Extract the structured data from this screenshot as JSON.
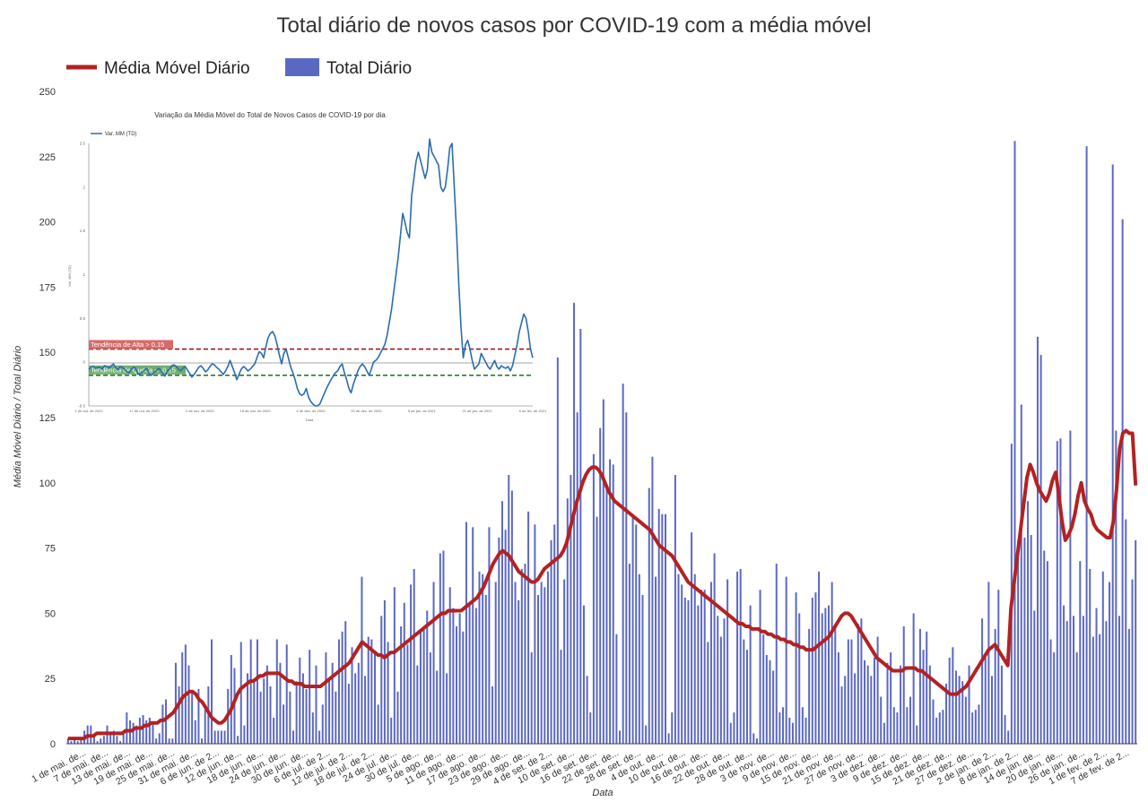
{
  "chart_data": [
    {
      "type": "bar",
      "title": "Total diário de novos casos por COVID-19 com a média móvel",
      "xlabel": "Data",
      "ylabel": "Média Móvel Diário / Total Diário",
      "ylim": [
        0,
        250
      ],
      "yticks": [
        "0",
        "25",
        "50",
        "75",
        "100",
        "125",
        "150",
        "175",
        "200",
        "225",
        "250"
      ],
      "grid": false,
      "legend_position": "top-left",
      "colors": {
        "bar": "#5b68c2",
        "line": "#b22222"
      },
      "legend": [
        {
          "name": "Média Móvel Diário",
          "kind": "line"
        },
        {
          "name": "Total Diário",
          "kind": "bar"
        }
      ],
      "category_labels": [
        "1 de mai. de...",
        "7 de mai. de...",
        "13 de mai. de...",
        "19 de mai. de...",
        "25 de mai. de...",
        "31 de mai. de...",
        "6 de jun. de 2...",
        "12 de jun. de...",
        "18 de jun. de...",
        "24 de jun. de...",
        "30 de jun. de...",
        "6 de jul. de 2...",
        "12 de jul. de 2...",
        "18 de jul. de 2...",
        "24 de jul. de...",
        "30 de jul. de...",
        "5 de ago. de...",
        "11 de ago. de...",
        "17 de ago. de...",
        "23 de ago. de...",
        "29 de ago. de...",
        "4 de set. de 2...",
        "10 de set. de...",
        "16 de set. de...",
        "22 de set. de...",
        "28 de set. de...",
        "4 de out. de...",
        "10 de out. de...",
        "16 de out. de...",
        "22 de out. de...",
        "28 de out. de...",
        "3 de nov. de...",
        "9 de nov. de...",
        "15 de nov. de...",
        "21 de nov. de...",
        "27 de nov. de...",
        "3 de dez. de...",
        "9 de dez. de...",
        "15 de dez. de...",
        "21 de dez. de...",
        "27 de dez. de...",
        "2 de jan. de 2...",
        "8 de jan. de 2...",
        "14 de jan. de...",
        "20 de jan. de...",
        "26 de jan. de...",
        "1 de fev. de 2...",
        "7 de fev. de 2..."
      ],
      "series": [
        {
          "name": "Total Diário",
          "type": "bar",
          "values": [
            2,
            1,
            2,
            1,
            2,
            5,
            7,
            7,
            3,
            1,
            2,
            3,
            7,
            4,
            5,
            3,
            1,
            4,
            12,
            9,
            8,
            7,
            10,
            11,
            9,
            10,
            8,
            2,
            4,
            15,
            17,
            2,
            2,
            31,
            22,
            35,
            38,
            30,
            20,
            9,
            21,
            2,
            13,
            22,
            40,
            5,
            5,
            5,
            5,
            21,
            34,
            29,
            3,
            39,
            7,
            27,
            40,
            25,
            40,
            20,
            25,
            30,
            22,
            10,
            40,
            31,
            15,
            38,
            20,
            5,
            24,
            33,
            27,
            21,
            36,
            12,
            30,
            5,
            15,
            35,
            25,
            31,
            20,
            40,
            43,
            47,
            23,
            37,
            27,
            31,
            64,
            26,
            41,
            40,
            35,
            15,
            49,
            55,
            39,
            10,
            60,
            20,
            45,
            54,
            38,
            61,
            67,
            30,
            44,
            45,
            51,
            35,
            62,
            28,
            73,
            74,
            27,
            60,
            52,
            45,
            50,
            43,
            85,
            54,
            83,
            52,
            66,
            65,
            57,
            83,
            22,
            62,
            79,
            93,
            82,
            103,
            97,
            62,
            55,
            67,
            69,
            89,
            35,
            84,
            57,
            62,
            60,
            66,
            78,
            84,
            148,
            36,
            63,
            94,
            103,
            169,
            127,
            159,
            53,
            26,
            12,
            111,
            87,
            121,
            132,
            99,
            109,
            107,
            42,
            5,
            138,
            127,
            69,
            88,
            84,
            65,
            57,
            7,
            98,
            110,
            64,
            90,
            88,
            88,
            4,
            12,
            103,
            65,
            61,
            56,
            55,
            81,
            65,
            53,
            59,
            59,
            39,
            62,
            73,
            49,
            41,
            48,
            63,
            8,
            12,
            66,
            67,
            40,
            36,
            53,
            4,
            2,
            59,
            42,
            34,
            32,
            28,
            69,
            12,
            14,
            64,
            10,
            8,
            58,
            50,
            14,
            10,
            44,
            56,
            58,
            66,
            50,
            52,
            53,
            62,
            45,
            35,
            22,
            26,
            40,
            40,
            27,
            46,
            48,
            32,
            30,
            26,
            33,
            41,
            18,
            8,
            31,
            35,
            14,
            12,
            30,
            45,
            14,
            18,
            50,
            7,
            44,
            36,
            43,
            30,
            17,
            10,
            12,
            13,
            23,
            33,
            37,
            28,
            26,
            24,
            18,
            30,
            12,
            13,
            15,
            48,
            33,
            62,
            26,
            44,
            59,
            30,
            11,
            5,
            115,
            231,
            78,
            130,
            79,
            93,
            80,
            51,
            156,
            149,
            74,
            70,
            40,
            35,
            116,
            117,
            53,
            47,
            120,
            49,
            35,
            70,
            49,
            229,
            67,
            41,
            52,
            42,
            66,
            47,
            62,
            222,
            120,
            49,
            201,
            86,
            44,
            63,
            78
          ]
        },
        {
          "name": "Média Móvel Diário",
          "type": "line",
          "values": [
            2,
            2,
            2,
            2,
            2,
            2,
            3,
            3,
            3,
            4,
            4,
            4,
            4,
            4,
            4,
            4,
            4,
            4,
            5,
            5,
            5,
            6,
            6,
            6,
            7,
            7,
            8,
            8,
            8,
            9,
            9,
            10,
            11,
            12,
            14,
            16,
            18,
            19,
            20,
            20,
            19,
            17,
            16,
            14,
            12,
            10,
            9,
            8,
            8,
            9,
            11,
            13,
            16,
            19,
            21,
            22,
            23,
            24,
            24,
            25,
            26,
            26,
            27,
            27,
            27,
            27,
            27,
            26,
            25,
            24,
            24,
            23,
            23,
            23,
            22,
            22,
            22,
            22,
            22,
            22,
            23,
            24,
            25,
            26,
            27,
            28,
            29,
            30,
            31,
            33,
            35,
            37,
            39,
            38,
            37,
            36,
            35,
            34,
            34,
            33,
            34,
            35,
            35,
            36,
            37,
            38,
            39,
            40,
            41,
            42,
            43,
            44,
            45,
            46,
            47,
            48,
            49,
            50,
            50,
            51,
            51,
            51,
            51,
            51,
            52,
            53,
            54,
            55,
            56,
            58,
            60,
            63,
            66,
            69,
            71,
            73,
            74,
            73,
            72,
            70,
            68,
            66,
            65,
            64,
            63,
            62,
            62,
            63,
            65,
            67,
            68,
            69,
            70,
            71,
            72,
            74,
            77,
            82,
            87,
            92,
            96,
            100,
            103,
            105,
            106,
            106,
            105,
            103,
            100,
            97,
            95,
            93,
            92,
            91,
            90,
            89,
            88,
            87,
            86,
            85,
            84,
            83,
            82,
            80,
            78,
            76,
            75,
            74,
            73,
            72,
            70,
            68,
            66,
            64,
            62,
            61,
            60,
            59,
            58,
            57,
            56,
            55,
            54,
            53,
            52,
            51,
            50,
            49,
            48,
            47,
            46,
            46,
            45,
            45,
            44,
            44,
            44,
            43,
            43,
            42,
            42,
            41,
            41,
            40,
            40,
            39,
            39,
            38,
            38,
            37,
            37,
            36,
            36,
            36,
            37,
            38,
            39,
            40,
            41,
            43,
            45,
            47,
            49,
            50,
            50,
            49,
            47,
            45,
            43,
            41,
            39,
            37,
            35,
            33,
            32,
            31,
            30,
            29,
            28,
            28,
            28,
            28,
            29,
            29,
            29,
            29,
            28,
            28,
            27,
            26,
            25,
            24,
            23,
            22,
            21,
            20,
            19,
            19,
            19,
            20,
            21,
            22,
            24,
            26,
            28,
            30,
            32,
            34,
            36,
            37,
            38,
            36,
            34,
            32,
            30,
            52,
            62,
            72,
            82,
            92,
            102,
            107,
            104,
            100,
            97,
            95,
            93,
            96,
            101,
            104,
            95,
            85,
            78,
            80,
            83,
            88,
            95,
            100,
            93,
            90,
            88,
            84,
            82,
            81,
            80,
            79,
            79,
            85,
            97,
            113,
            119,
            120,
            119,
            119,
            99
          ]
        }
      ]
    },
    {
      "type": "line",
      "title": "Variação da Média Móvel do Total de Novos Casos de COVID-19 por dia",
      "xlabel": "Data",
      "ylabel": "Var. MM (TD)",
      "ylim": [
        -0.5,
        2.5
      ],
      "yticks": [
        "-0.5",
        "0",
        "0.5",
        "1",
        "1.5",
        "2",
        "2.5"
      ],
      "x_tick_labels": [
        "1 de out. de 2020",
        "17 de out. de 2020",
        "2 de nov. de 2020",
        "18 de nov. de 2020",
        "4 de dez. de 2020",
        "20 de dez. de 2020",
        "5 de jan. de 2021",
        "21 de jan. de 2021",
        "6 de fev. de 2021"
      ],
      "legend_position": "top-left",
      "colors": {
        "line": "#2b6cb0",
        "high": "#a01818",
        "low": "#2c7a2c"
      },
      "series": [
        {
          "name": "Var. MM (TD)",
          "values": [
            -0.08,
            -0.06,
            -0.05,
            -0.07,
            -0.06,
            -0.06,
            -0.08,
            -0.04,
            -0.05,
            -0.07,
            -0.04,
            -0.02,
            -0.06,
            -0.09,
            -0.05,
            -0.06,
            -0.08,
            -0.11,
            -0.12,
            -0.08,
            -0.06,
            -0.07,
            -0.14,
            -0.13,
            -0.11,
            -0.09,
            -0.07,
            -0.14,
            -0.15,
            -0.12,
            -0.1,
            -0.07,
            -0.09,
            -0.13,
            -0.16,
            -0.1,
            -0.08,
            -0.04,
            -0.03,
            -0.05,
            -0.08,
            -0.1,
            -0.07,
            -0.05,
            -0.09,
            -0.13,
            -0.17,
            -0.14,
            -0.1,
            -0.06,
            -0.04,
            -0.07,
            -0.11,
            -0.09,
            -0.05,
            -0.02,
            -0.03,
            -0.06,
            -0.08,
            -0.11,
            -0.14,
            -0.1,
            -0.05,
            0.02,
            -0.05,
            -0.12,
            -0.2,
            -0.14,
            -0.08,
            -0.05,
            -0.07,
            -0.1,
            -0.08,
            -0.05,
            -0.02,
            0.05,
            0.12,
            0.1,
            0.05,
            0.18,
            0.28,
            0.33,
            0.35,
            0.3,
            0.2,
            0.08,
            -0.02,
            0.1,
            0.15,
            0.05,
            -0.05,
            -0.12,
            -0.2,
            -0.3,
            -0.36,
            -0.38,
            -0.36,
            -0.3,
            -0.4,
            -0.45,
            -0.48,
            -0.5,
            -0.5,
            -0.48,
            -0.42,
            -0.36,
            -0.3,
            -0.25,
            -0.2,
            -0.16,
            -0.12,
            -0.1,
            -0.05,
            -0.02,
            -0.12,
            -0.2,
            -0.3,
            -0.35,
            -0.25,
            -0.18,
            -0.1,
            -0.05,
            -0.02,
            -0.05,
            -0.1,
            -0.15,
            -0.08,
            0,
            0.02,
            0.05,
            0.1,
            0.15,
            0.2,
            0.3,
            0.45,
            0.6,
            0.8,
            1,
            1.2,
            1.45,
            1.7,
            1.6,
            1.48,
            1.42,
            1.9,
            2.1,
            2.3,
            2.4,
            2.3,
            2.2,
            2.1,
            2.2,
            2.55,
            2.4,
            2.35,
            2.3,
            2.25,
            2.0,
            1.95,
            2.0,
            2.2,
            2.45,
            2.5,
            2.0,
            1.5,
            0.9,
            0.4,
            0.05,
            0.2,
            0.25,
            0.15,
            0.02,
            -0.08,
            -0.05,
            -0.02,
            0.1,
            0.05,
            0,
            -0.05,
            -0.08,
            -0.03,
            0.02,
            -0.05,
            -0.08,
            -0.04,
            -0.06,
            -0.07,
            -0.05,
            -0.1,
            -0.04,
            0.08,
            0.2,
            0.35,
            0.45,
            0.55,
            0.5,
            0.35,
            0.15,
            0.05
          ]
        }
      ],
      "reference_lines": [
        {
          "label": "Tendência de Alta > 0,15",
          "value": 0.15
        },
        {
          "label": "Tendência de Queda < -0,15",
          "value": -0.15
        }
      ]
    }
  ]
}
